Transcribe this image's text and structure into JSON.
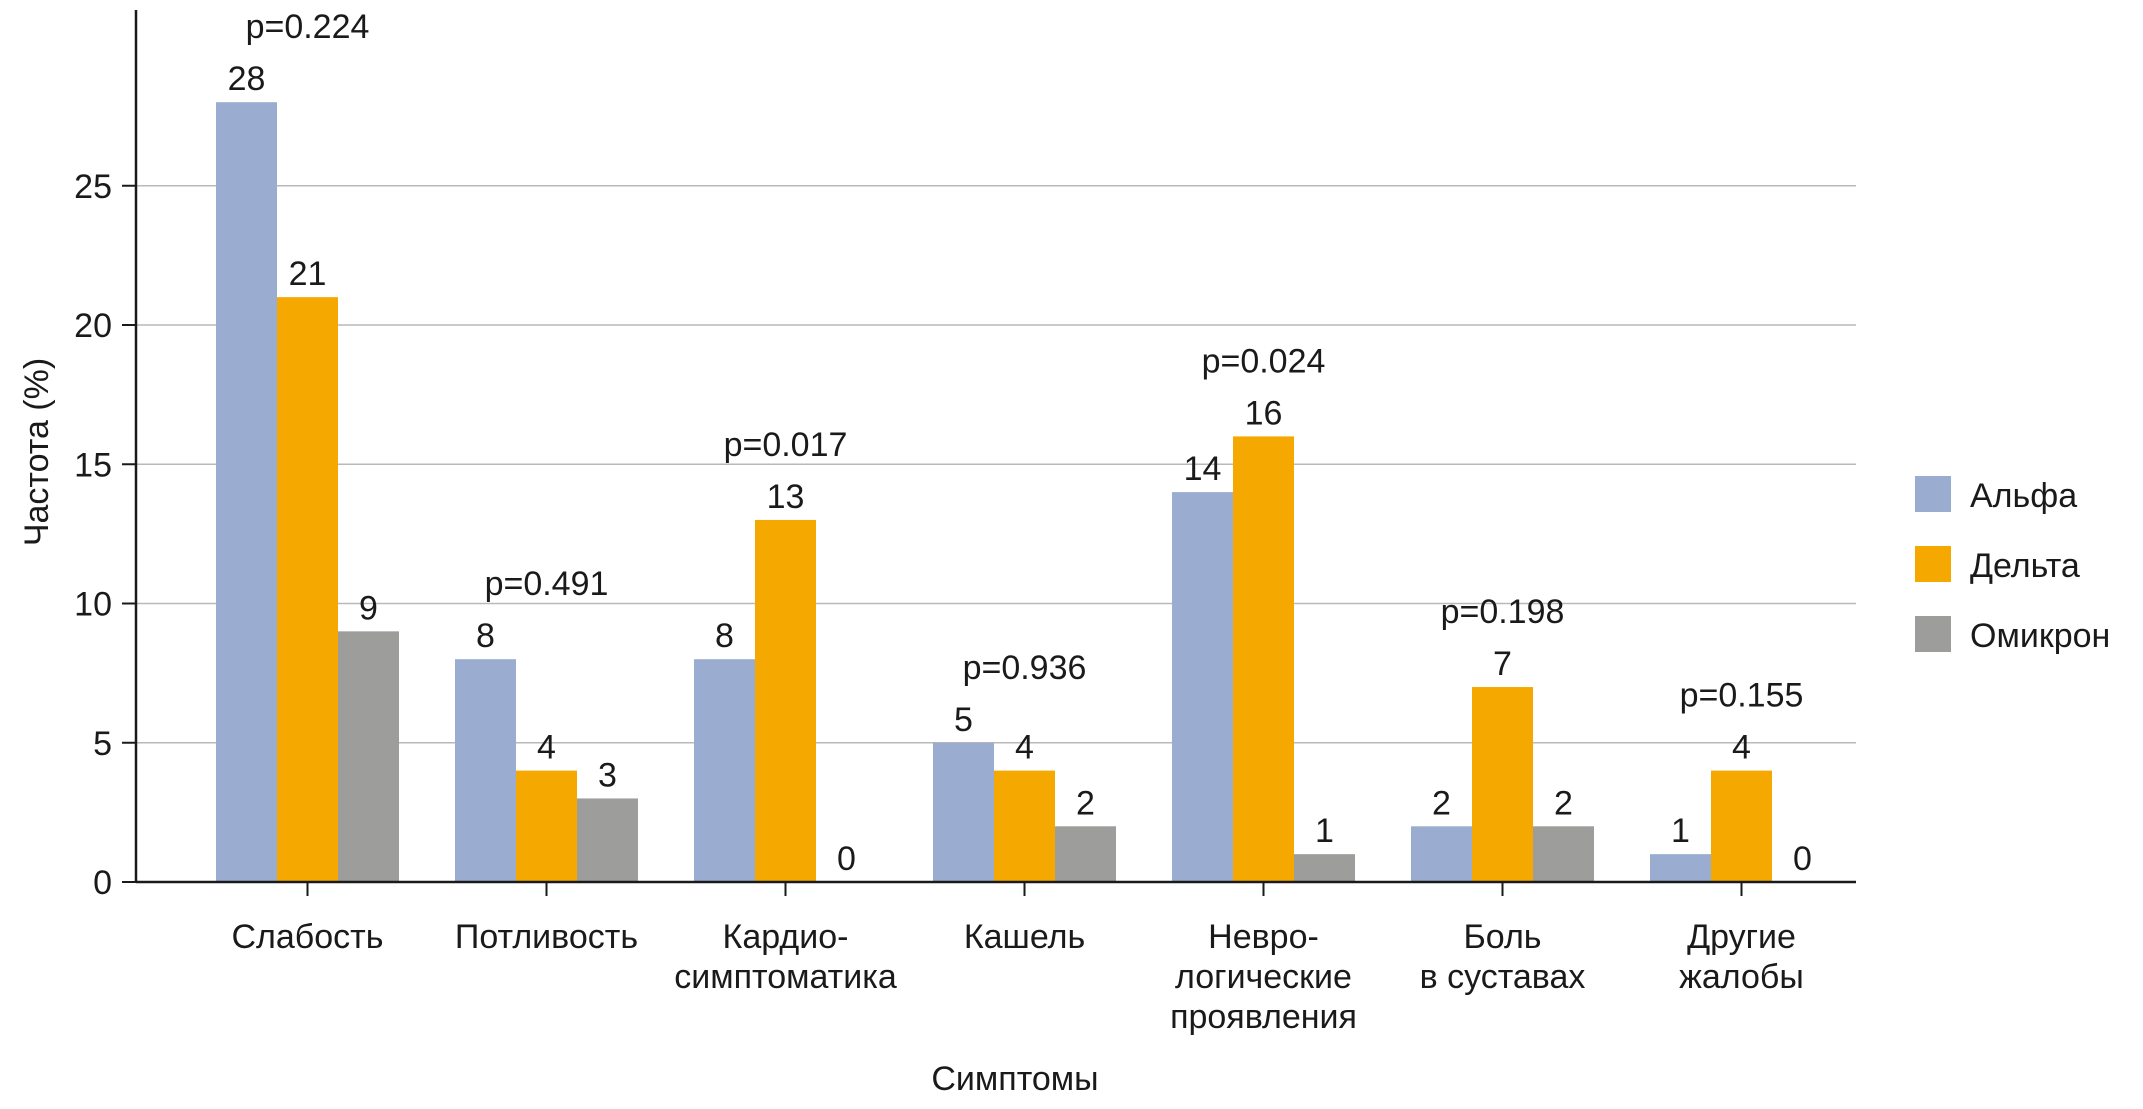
{
  "chart_data": {
    "type": "bar",
    "title": "",
    "xlabel": "Симптомы",
    "ylabel": "Частота (%)",
    "ylim": [
      0,
      30
    ],
    "yticks": [
      "0",
      "5",
      "10",
      "15",
      "20",
      "25"
    ],
    "grid": true,
    "legend_position": "right",
    "categories": [
      [
        "Слабость"
      ],
      [
        "Потливость"
      ],
      [
        "Кардио-",
        "симптоматика"
      ],
      [
        "Кашель"
      ],
      [
        "Невро-",
        "логические",
        "проявления"
      ],
      [
        "Боль",
        "в суставах"
      ],
      [
        "Другие",
        "жалобы"
      ]
    ],
    "series": [
      {
        "name": "Альфа",
        "color": "#9aaccf",
        "values": [
          28,
          8,
          8,
          5,
          14,
          2,
          1
        ]
      },
      {
        "name": "Дельта",
        "color": "#f5a800",
        "values": [
          21,
          4,
          13,
          4,
          16,
          7,
          4
        ]
      },
      {
        "name": "Омикрон",
        "color": "#9d9d9b",
        "values": [
          9,
          3,
          0,
          2,
          1,
          2,
          0
        ]
      }
    ],
    "p_values": [
      "p=0.224",
      "p=0.491",
      "p=0.017",
      "p=0.936",
      "p=0.024",
      "p=0.198",
      "p=0.155"
    ]
  }
}
